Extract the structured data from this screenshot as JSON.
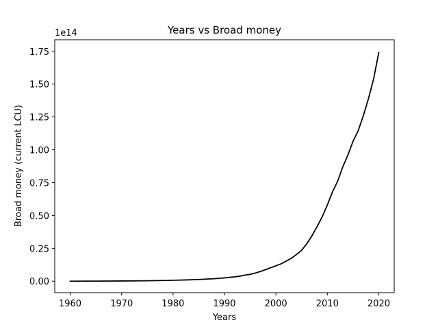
{
  "chart_data": {
    "type": "line",
    "title": "Years vs Broad money",
    "xlabel": "Years",
    "ylabel": "Broad money (current LCU)",
    "offset_text": "1e14",
    "xlim": [
      1957,
      2023
    ],
    "ylim": [
      -0.0875,
      1.8375
    ],
    "x_ticks": [
      1960,
      1970,
      1980,
      1990,
      2000,
      2010,
      2020
    ],
    "x_tick_labels": [
      "1960",
      "1970",
      "1980",
      "1990",
      "2000",
      "2010",
      "2020"
    ],
    "y_ticks": [
      0,
      0.25,
      0.5,
      0.75,
      1.0,
      1.25,
      1.5,
      1.75
    ],
    "y_tick_labels": [
      "0.00",
      "0.25",
      "0.50",
      "0.75",
      "1.00",
      "1.25",
      "1.50",
      "1.75"
    ],
    "grid": false,
    "line_color": "#000000",
    "series": [
      {
        "x": [
          1960,
          1965,
          1970,
          1975,
          1978,
          1980,
          1983,
          1985,
          1988,
          1990,
          1992,
          1993,
          1994,
          1995,
          1996,
          1997,
          1998,
          1999,
          2000,
          2001,
          2002,
          2003,
          2004,
          2005,
          2006,
          2007,
          2008,
          2009,
          2010,
          2011,
          2012,
          2013,
          2014,
          2015,
          2016,
          2017,
          2018,
          2019,
          2020
        ],
        "y": [
          0.0,
          0.0005,
          0.0015,
          0.003,
          0.005,
          0.007,
          0.01,
          0.013,
          0.019,
          0.025,
          0.033,
          0.038,
          0.046,
          0.052,
          0.062,
          0.074,
          0.088,
          0.103,
          0.117,
          0.132,
          0.153,
          0.174,
          0.203,
          0.235,
          0.285,
          0.345,
          0.415,
          0.49,
          0.58,
          0.68,
          0.76,
          0.87,
          0.96,
          1.065,
          1.145,
          1.26,
          1.39,
          1.54,
          1.74
        ]
      }
    ]
  }
}
